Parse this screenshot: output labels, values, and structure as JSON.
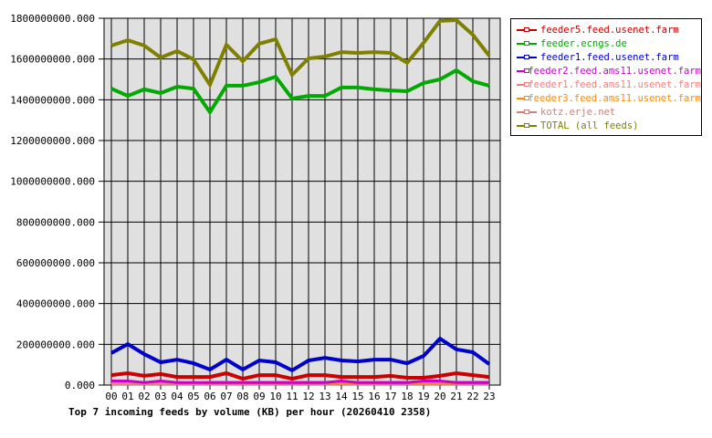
{
  "chart_data": {
    "type": "line",
    "title": "Top 7 incoming feeds by volume (KB) per hour (20260410 2358)",
    "xlabel": "",
    "ylabel": "",
    "ylim": [
      0,
      1800000000
    ],
    "grid": true,
    "legend_position": "right",
    "yticks": [
      "0.000",
      "200000000.000",
      "400000000.000",
      "600000000.000",
      "800000000.000",
      "1000000000.000",
      "1200000000.000",
      "1400000000.000",
      "1600000000.000",
      "1800000000.000"
    ],
    "categories": [
      "00",
      "01",
      "02",
      "03",
      "04",
      "05",
      "06",
      "07",
      "08",
      "09",
      "10",
      "11",
      "12",
      "13",
      "14",
      "15",
      "16",
      "17",
      "18",
      "19",
      "20",
      "21",
      "22",
      "23"
    ],
    "series": [
      {
        "name": "feeder5.feed.usenet.farm",
        "color": "#cc0000",
        "values": [
          49000000,
          58000000,
          45000000,
          54000000,
          40000000,
          40000000,
          40000000,
          58000000,
          31000000,
          49000000,
          49000000,
          31000000,
          49000000,
          49000000,
          40000000,
          40000000,
          40000000,
          45000000,
          36000000,
          36000000,
          45000000,
          58000000,
          49000000,
          40000000
        ]
      },
      {
        "name": "feeder.ecngs.de",
        "color": "#00aa00",
        "values": [
          1455000000,
          1419000000,
          1451000000,
          1433000000,
          1464000000,
          1455000000,
          1339000000,
          1469000000,
          1469000000,
          1486000000,
          1513000000,
          1406000000,
          1419000000,
          1419000000,
          1460000000,
          1460000000,
          1451000000,
          1446000000,
          1442000000,
          1482000000,
          1500000000,
          1545000000,
          1491000000,
          1469000000
        ]
      },
      {
        "name": "feeder1.feed.usenet.farm",
        "color": "#0000cc",
        "values": [
          157000000,
          201000000,
          152000000,
          112000000,
          125000000,
          107000000,
          76000000,
          125000000,
          76000000,
          121000000,
          112000000,
          72000000,
          121000000,
          134000000,
          121000000,
          116000000,
          125000000,
          125000000,
          107000000,
          143000000,
          228000000,
          175000000,
          161000000,
          103000000
        ]
      },
      {
        "name": "feeder2.feed.ams11.usenet.farm",
        "color": "#cc00cc",
        "values": [
          20000000,
          20000000,
          12000000,
          20000000,
          12000000,
          12000000,
          12000000,
          12000000,
          12000000,
          12000000,
          12000000,
          12000000,
          12000000,
          12000000,
          20000000,
          12000000,
          12000000,
          12000000,
          12000000,
          20000000,
          20000000,
          12000000,
          12000000,
          12000000
        ]
      },
      {
        "name": "feeder1.feed.ams11.usenet.farm",
        "color": "#f08080",
        "values": [
          10000000,
          10000000,
          10000000,
          10000000,
          10000000,
          10000000,
          14000000,
          14000000,
          14000000,
          14000000,
          14000000,
          14000000,
          14000000,
          14000000,
          14000000,
          14000000,
          14000000,
          14000000,
          14000000,
          14000000,
          14000000,
          14000000,
          14000000,
          14000000
        ]
      },
      {
        "name": "feeder3.feed.ams11.usenet.farm",
        "color": "#ff8800",
        "values": [
          8000000,
          8000000,
          14000000,
          8000000,
          14000000,
          8000000,
          8000000,
          8000000,
          8000000,
          8000000,
          8000000,
          14000000,
          8000000,
          14000000,
          8000000,
          8000000,
          8000000,
          14000000,
          14000000,
          8000000,
          8000000,
          8000000,
          14000000,
          14000000
        ]
      },
      {
        "name": "kotz.erje.net",
        "color": "#cc8080",
        "values": [
          5000000,
          5000000,
          5000000,
          5000000,
          5000000,
          5000000,
          5000000,
          5000000,
          5000000,
          5000000,
          5000000,
          5000000,
          5000000,
          5000000,
          5000000,
          5000000,
          5000000,
          5000000,
          5000000,
          5000000,
          5000000,
          5000000,
          5000000,
          5000000
        ]
      },
      {
        "name": "TOTAL (all feeds)",
        "color": "#808000",
        "values": [
          1666000000,
          1692000000,
          1666000000,
          1607000000,
          1639000000,
          1598000000,
          1473000000,
          1670000000,
          1589000000,
          1675000000,
          1697000000,
          1522000000,
          1603000000,
          1612000000,
          1634000000,
          1630000000,
          1634000000,
          1630000000,
          1581000000,
          1679000000,
          1787000000,
          1791000000,
          1719000000,
          1616000000
        ]
      }
    ]
  }
}
